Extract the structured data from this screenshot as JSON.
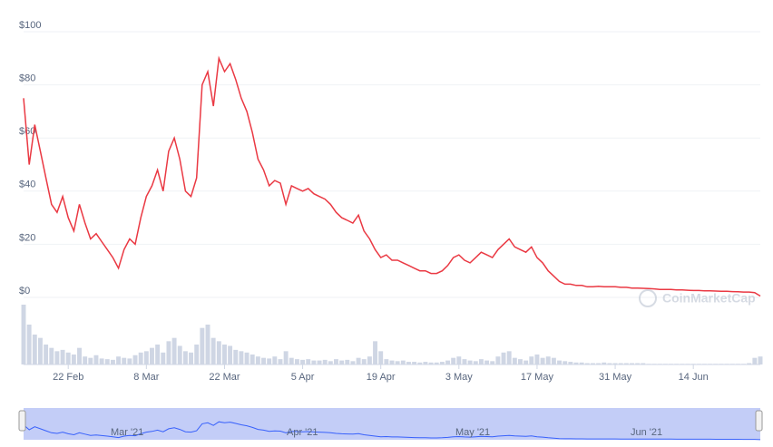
{
  "chart_data": {
    "type": "line",
    "watermark": "CoinMarketCap",
    "color": "#ea3943",
    "grid": true,
    "ylim": [
      0,
      100
    ],
    "yticks": [
      {
        "value": 0,
        "label": "$0"
      },
      {
        "value": 20,
        "label": "$20"
      },
      {
        "value": 40,
        "label": "$40"
      },
      {
        "value": 60,
        "label": "$60"
      },
      {
        "value": 80,
        "label": "$80"
      },
      {
        "value": 100,
        "label": "$100"
      }
    ],
    "categories": [
      null,
      null,
      null,
      null,
      null,
      null,
      null,
      null,
      "22 Feb",
      null,
      null,
      null,
      null,
      null,
      null,
      null,
      null,
      null,
      null,
      null,
      null,
      null,
      "8 Mar",
      null,
      null,
      null,
      null,
      null,
      null,
      null,
      null,
      null,
      null,
      null,
      null,
      null,
      "22 Mar",
      null,
      null,
      null,
      null,
      null,
      null,
      null,
      null,
      null,
      null,
      null,
      null,
      null,
      "5 Apr",
      null,
      null,
      null,
      null,
      null,
      null,
      null,
      null,
      null,
      null,
      null,
      null,
      null,
      "19 Apr",
      null,
      null,
      null,
      null,
      null,
      null,
      null,
      null,
      null,
      null,
      null,
      null,
      null,
      "3 May",
      null,
      null,
      null,
      null,
      null,
      null,
      null,
      null,
      null,
      null,
      null,
      null,
      null,
      "17 May",
      null,
      null,
      null,
      null,
      null,
      null,
      null,
      null,
      null,
      null,
      null,
      null,
      null,
      "31 May",
      null,
      null,
      null,
      null,
      null,
      null,
      null,
      null,
      null,
      null,
      null,
      null,
      null,
      "14 Jun",
      null,
      null,
      null,
      null,
      null,
      null,
      null,
      null,
      null,
      null,
      null,
      null
    ],
    "values": [
      75,
      50,
      65,
      55,
      45,
      35,
      32,
      38,
      30,
      25,
      35,
      28,
      22,
      24,
      21,
      18,
      15,
      11,
      18,
      22,
      20,
      30,
      38,
      42,
      48,
      40,
      55,
      60,
      52,
      40,
      38,
      45,
      80,
      85,
      72,
      90,
      85,
      88,
      82,
      75,
      70,
      62,
      52,
      48,
      42,
      44,
      43,
      35,
      42,
      41,
      40,
      41,
      39,
      38,
      37,
      35,
      32,
      30,
      29,
      28,
      31,
      25,
      22,
      18,
      15,
      16,
      14,
      14,
      13,
      12,
      11,
      10,
      10,
      9,
      9,
      10,
      12,
      15,
      16,
      14,
      13,
      15,
      17,
      16,
      15,
      18,
      20,
      22,
      19,
      18,
      17,
      19,
      15,
      13,
      10,
      8,
      6,
      5,
      5,
      4.5,
      4.5,
      4,
      4,
      4.2,
      4,
      4,
      4,
      3.8,
      3.8,
      3.5,
      3.5,
      3.4,
      3.3,
      3.2,
      3,
      3,
      3,
      2.8,
      2.8,
      2.7,
      2.6,
      2.6,
      2.5,
      2.5,
      2.4,
      2.3,
      2.3,
      2.2,
      2.1,
      2,
      2,
      1.8,
      0.5
    ],
    "volume": {
      "color": "#cfd6e4",
      "values": [
        90,
        60,
        45,
        40,
        30,
        25,
        20,
        22,
        18,
        15,
        25,
        12,
        10,
        14,
        9,
        8,
        7,
        12,
        10,
        9,
        14,
        18,
        20,
        25,
        30,
        18,
        35,
        40,
        28,
        20,
        18,
        30,
        55,
        60,
        40,
        35,
        30,
        28,
        22,
        20,
        18,
        15,
        12,
        10,
        9,
        12,
        8,
        20,
        10,
        8,
        7,
        8,
        6,
        6,
        7,
        5,
        8,
        6,
        7,
        5,
        10,
        8,
        12,
        35,
        20,
        8,
        6,
        5,
        6,
        4,
        4,
        3,
        4,
        3,
        3,
        4,
        6,
        10,
        12,
        8,
        6,
        5,
        8,
        6,
        5,
        12,
        18,
        20,
        10,
        8,
        6,
        12,
        15,
        10,
        12,
        10,
        6,
        5,
        4,
        3,
        3,
        2,
        2,
        2,
        3,
        2,
        2,
        2,
        2,
        2,
        2,
        2,
        1,
        1,
        1,
        1,
        1,
        1,
        1,
        1,
        1,
        1,
        1,
        1,
        1,
        1,
        1,
        1,
        1,
        1,
        2,
        10,
        12
      ]
    },
    "navigator": {
      "labels": [
        "Mar '21",
        "Apr '21",
        "May '21",
        "Jun '21"
      ]
    }
  }
}
